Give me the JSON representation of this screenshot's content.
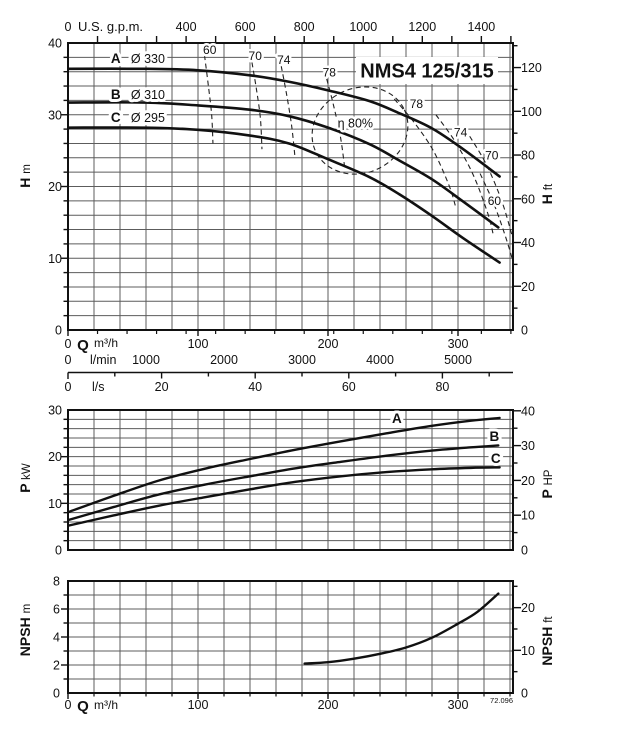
{
  "title": "NMS4 125/315",
  "footnote": "72.096",
  "colors": {
    "ink": "#111111",
    "grid": "#5c5c5c",
    "bg": "#ffffff",
    "dash": "#222222"
  },
  "chart_data": [
    {
      "id": "head",
      "type": "line",
      "title": "NMS4 125/315",
      "x_axes": [
        {
          "id": "gpm",
          "unit": "U.S. g.p.m.",
          "ticks": [
            0,
            400,
            600,
            800,
            1000,
            1200,
            1400
          ],
          "minor_step": 100,
          "to_m3h": 0.227124
        },
        {
          "id": "m3h",
          "unit": "Q m³/h",
          "ticks": [
            0,
            100,
            200,
            300
          ],
          "minor_step": 20,
          "to_m3h": 1
        },
        {
          "id": "lmin",
          "unit": "l/min",
          "ticks": [
            0,
            1000,
            2000,
            3000,
            4000,
            5000
          ],
          "to_m3h": 0.06
        },
        {
          "id": "ls",
          "unit": "l/s",
          "ticks": [
            0,
            20,
            40,
            60,
            80
          ],
          "minor_step": 10,
          "to_m3h": 3.6
        }
      ],
      "y_left": {
        "unit": "H m",
        "ticks": [
          0,
          10,
          20,
          30,
          40
        ],
        "minor_step": 2,
        "max": 40
      },
      "y_right": {
        "unit": "H ft",
        "ticks": [
          0,
          20,
          40,
          60,
          80,
          100,
          120
        ],
        "minor_step": 10,
        "per_m": 3.28084
      },
      "series": [
        {
          "name": "A",
          "impeller": "Ø 330",
          "label_at": [
            33,
            37.2
          ],
          "points": [
            [
              0,
              36.4
            ],
            [
              60,
              36.4
            ],
            [
              100,
              36.2
            ],
            [
              140,
              35.5
            ],
            [
              170,
              34.6
            ],
            [
              200,
              33.4
            ],
            [
              232,
              31.9
            ],
            [
              255,
              30.2
            ],
            [
              280,
              28.1
            ],
            [
              304,
              25.2
            ],
            [
              332,
              21.4
            ]
          ]
        },
        {
          "name": "B",
          "impeller": "Ø 310",
          "label_at": [
            33,
            32.2
          ],
          "points": [
            [
              0,
              31.7
            ],
            [
              60,
              31.7
            ],
            [
              100,
              31.3
            ],
            [
              140,
              30.7
            ],
            [
              170,
              29.8
            ],
            [
              200,
              28.2
            ],
            [
              232,
              25.9
            ],
            [
              255,
              23.6
            ],
            [
              280,
              21.0
            ],
            [
              304,
              17.9
            ],
            [
              331,
              14.3
            ]
          ]
        },
        {
          "name": "C",
          "impeller": "Ø 295",
          "label_at": [
            33,
            29.0
          ],
          "points": [
            [
              0,
              28.2
            ],
            [
              60,
              28.2
            ],
            [
              100,
              27.9
            ],
            [
              140,
              27.1
            ],
            [
              170,
              26.0
            ],
            [
              200,
              23.8
            ],
            [
              232,
              21.3
            ],
            [
              255,
              18.9
            ],
            [
              280,
              15.9
            ],
            [
              304,
              12.8
            ],
            [
              332,
              9.4
            ]
          ]
        }
      ],
      "efficiency_curves": [
        {
          "label": "60",
          "label_at": [
            109,
            39.0
          ],
          "points": [
            [
              105,
              38.3
            ],
            [
              108,
              34.0
            ],
            [
              110.5,
              30.0
            ],
            [
              111.5,
              26.0
            ]
          ]
        },
        {
          "label": "70",
          "label_at": [
            144,
            38.2
          ],
          "points": [
            [
              141.5,
              37.3
            ],
            [
              145,
              33.5
            ],
            [
              148,
              29.5
            ],
            [
              149.2,
              25.2
            ]
          ]
        },
        {
          "label": "74",
          "label_at": [
            166,
            37.6
          ],
          "points": [
            [
              164,
              36.8
            ],
            [
              168,
              33.0
            ],
            [
              172,
              28.5
            ],
            [
              174.6,
              24.1
            ]
          ]
        },
        {
          "label": "78",
          "label_at": [
            201,
            35.9
          ],
          "points": [
            [
              199,
              35.0
            ],
            [
              204,
              31.5
            ],
            [
              209.5,
              27.0
            ],
            [
              213,
              22.4
            ]
          ]
        },
        {
          "label": "78",
          "label_at": [
            268,
            31.5
          ],
          "points": [
            [
              251,
              32.2
            ],
            [
              266,
              29.0
            ],
            [
              281,
              25.0
            ],
            [
              293,
              20.2
            ],
            [
              298,
              17.3
            ]
          ]
        },
        {
          "label": "74",
          "label_at": [
            302,
            27.5
          ],
          "points": [
            [
              283,
              30.0
            ],
            [
              298,
              26.2
            ],
            [
              312,
              21.5
            ],
            [
              323,
              16.2
            ],
            [
              327,
              13.4
            ]
          ]
        },
        {
          "label": "70",
          "label_at": [
            326,
            24.3
          ],
          "points": [
            [
              309,
              27.0
            ],
            [
              322,
              23.0
            ],
            [
              334,
              17.8
            ],
            [
              343,
              12.2
            ],
            [
              346,
              10.0
            ]
          ]
        },
        {
          "label": "60",
          "label_at": [
            328,
            18.0
          ],
          "points": [
            [
              317,
              21.8
            ],
            [
              328,
              17.4
            ],
            [
              338,
              12.2
            ],
            [
              344,
              8.4
            ]
          ]
        }
      ],
      "best_efficiency": {
        "label": "η 80%",
        "label_at": [
          221,
          28.8
        ],
        "center": [
          224.6,
          27.8
        ],
        "rx": 37.7,
        "ry": 5.9,
        "rotate": -25
      }
    },
    {
      "id": "power",
      "type": "line",
      "y_left": {
        "unit": "P kW",
        "ticks": [
          0,
          10,
          20,
          30
        ],
        "minor_step": 2,
        "max": 30
      },
      "y_right": {
        "unit": "P HP",
        "ticks": [
          0,
          10,
          20,
          30,
          40
        ],
        "minor_step": 5,
        "per_kw": 1.34102
      },
      "series": [
        {
          "name": "A",
          "label_at": [
            253,
            27.2
          ],
          "points": [
            [
              0,
              8.1
            ],
            [
              35,
              11.6
            ],
            [
              70,
              14.9
            ],
            [
              105,
              17.4
            ],
            [
              140,
              19.5
            ],
            [
              175,
              21.5
            ],
            [
              210,
              23.3
            ],
            [
              245,
              25.0
            ],
            [
              280,
              26.6
            ],
            [
              310,
              27.7
            ],
            [
              332,
              28.3
            ]
          ]
        },
        {
          "name": "B",
          "label_at": [
            328,
            23.4
          ],
          "points": [
            [
              0,
              6.4
            ],
            [
              35,
              9.2
            ],
            [
              70,
              11.9
            ],
            [
              105,
              14.0
            ],
            [
              140,
              15.8
            ],
            [
              175,
              17.5
            ],
            [
              210,
              18.9
            ],
            [
              245,
              20.2
            ],
            [
              280,
              21.3
            ],
            [
              310,
              22.0
            ],
            [
              331,
              22.4
            ]
          ]
        },
        {
          "name": "C",
          "label_at": [
            329,
            18.6
          ],
          "points": [
            [
              0,
              5.2
            ],
            [
              35,
              7.4
            ],
            [
              70,
              9.5
            ],
            [
              105,
              11.3
            ],
            [
              140,
              13.0
            ],
            [
              175,
              14.6
            ],
            [
              210,
              15.8
            ],
            [
              245,
              16.7
            ],
            [
              280,
              17.3
            ],
            [
              310,
              17.6
            ],
            [
              332,
              17.7
            ]
          ]
        }
      ]
    },
    {
      "id": "npsh",
      "type": "line",
      "x_axis": {
        "unit": "Q m³/h",
        "ticks": [
          0,
          100,
          200,
          300
        ],
        "minor_step": 20
      },
      "y_left": {
        "unit": "NPSH m",
        "ticks": [
          0,
          2,
          4,
          6,
          8
        ],
        "minor_step": 1,
        "max": 8
      },
      "y_right": {
        "unit": "NPSH ft",
        "ticks": [
          0,
          10,
          20
        ],
        "minor_step": 5,
        "per_m": 3.28084
      },
      "series": [
        {
          "name": "NPSH",
          "points": [
            [
              182,
              2.1
            ],
            [
              200,
              2.2
            ],
            [
              220,
              2.45
            ],
            [
              240,
              2.8
            ],
            [
              260,
              3.25
            ],
            [
              280,
              3.95
            ],
            [
              300,
              4.95
            ],
            [
              315,
              5.8
            ],
            [
              331,
              7.1
            ]
          ]
        }
      ]
    }
  ]
}
